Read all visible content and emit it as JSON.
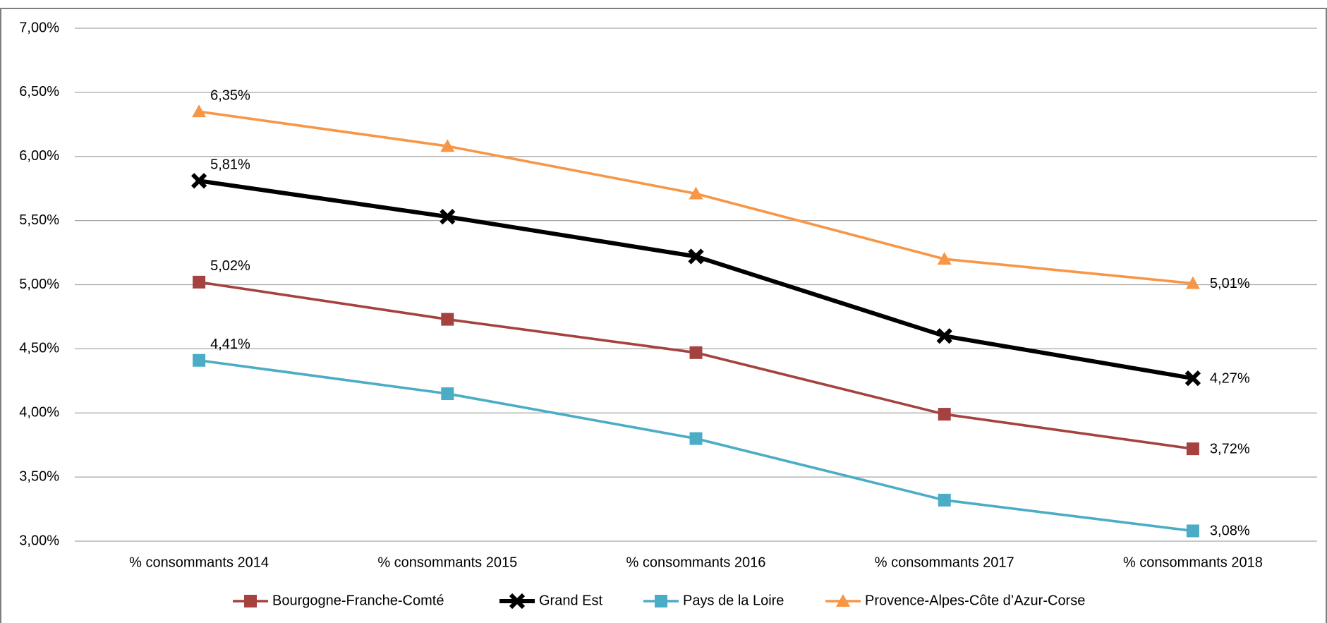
{
  "chart_data": {
    "type": "line",
    "categories": [
      "% consommants 2014",
      "% consommants 2015",
      "% consommants 2016",
      "% consommants 2017",
      "% consommants 2018"
    ],
    "series": [
      {
        "name": "Bourgogne-Franche-Comté",
        "color": "#a5423f",
        "marker": "square",
        "values": [
          5.02,
          4.73,
          4.47,
          3.99,
          3.72
        ],
        "value_labels": [
          "5,02%",
          null,
          null,
          null,
          "3,72%"
        ]
      },
      {
        "name": "Grand Est",
        "color": "#000000",
        "marker": "x",
        "values": [
          5.81,
          5.53,
          5.22,
          4.6,
          4.27
        ],
        "value_labels": [
          "5,81%",
          null,
          null,
          null,
          "4,27%"
        ]
      },
      {
        "name": "Pays de la Loire",
        "color": "#4bacc6",
        "marker": "square",
        "values": [
          4.41,
          4.15,
          3.8,
          3.32,
          3.08
        ],
        "value_labels": [
          "4,41%",
          null,
          null,
          null,
          "3,08%"
        ]
      },
      {
        "name": "Provence-Alpes-Côte d’Azur-Corse",
        "color": "#f79646",
        "marker": "triangle",
        "values": [
          6.35,
          6.08,
          5.71,
          5.2,
          5.01
        ],
        "value_labels": [
          "6,35%",
          null,
          null,
          null,
          "5,01%"
        ]
      }
    ],
    "ylim": [
      3,
      7
    ],
    "yticks": [
      {
        "value": 3,
        "label": "3,00%"
      },
      {
        "value": 3.5,
        "label": "3,50%"
      },
      {
        "value": 4,
        "label": "4,00%"
      },
      {
        "value": 4.5,
        "label": "4,50%"
      },
      {
        "value": 5,
        "label": "5,00%"
      },
      {
        "value": 5.5,
        "label": "5,50%"
      },
      {
        "value": 6,
        "label": "6,00%"
      },
      {
        "value": 6.5,
        "label": "6,50%"
      },
      {
        "value": 7,
        "label": "7,00%"
      }
    ],
    "grid": true,
    "legend": "bottom"
  }
}
